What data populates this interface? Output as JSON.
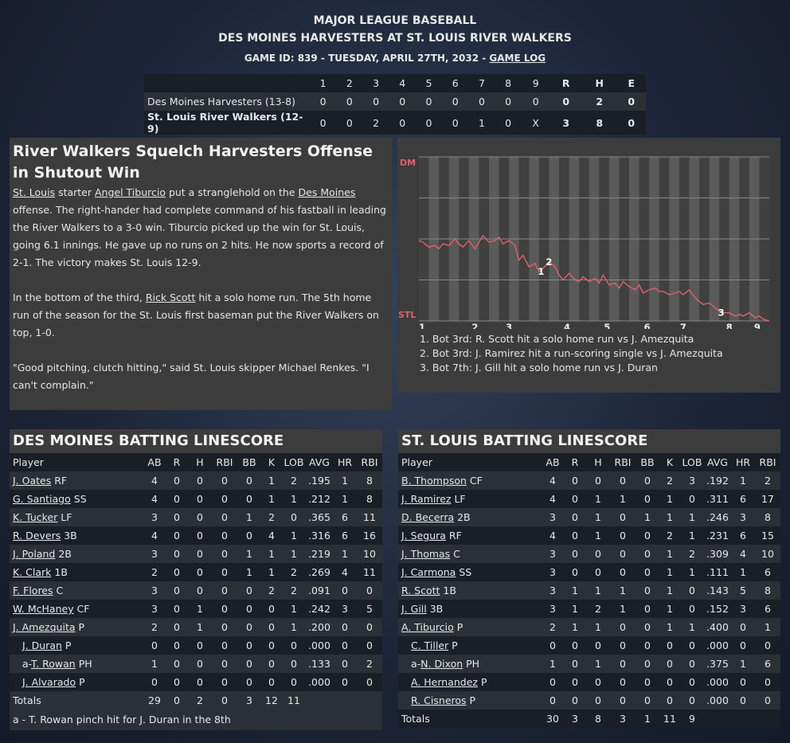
{
  "header": {
    "league": "MAJOR LEAGUE BASEBALL",
    "matchup": "DES MOINES HARVESTERS AT ST. LOUIS RIVER WALKERS",
    "game_info": "GAME ID: 839 - TUESDAY, APRIL 27TH, 2032 - ",
    "game_log_link": "GAME LOG"
  },
  "linescore": {
    "innings": [
      "1",
      "2",
      "3",
      "4",
      "5",
      "6",
      "7",
      "8",
      "9",
      "R",
      "H",
      "E"
    ],
    "away": {
      "team": "Des Moines Harvesters (13-8)",
      "cells": [
        "0",
        "0",
        "0",
        "0",
        "0",
        "0",
        "0",
        "0",
        "0",
        "0",
        "2",
        "0"
      ]
    },
    "home": {
      "team": "St. Louis River Walkers (12-9)",
      "cells": [
        "0",
        "0",
        "2",
        "0",
        "0",
        "0",
        "1",
        "0",
        "X",
        "3",
        "8",
        "0"
      ]
    }
  },
  "story": {
    "title": "River Walkers Squelch Harvesters Offense in Shutout Win",
    "p1": {
      "link1": "St. Louis",
      "t1": " starter ",
      "link2": "Angel Tiburcio",
      "t2": " put a stranglehold on the ",
      "link3": "Des Moines",
      "t3": " offense. The right-hander had complete command of his fastball in leading the River Walkers to a 3-0 win. Tiburcio picked up the win for St. Louis, going 6.1 innings. He gave up no runs on 2 hits. He now sports a record of 2-1. The victory makes St. Louis 12-9."
    },
    "p2": {
      "t1": "In the bottom of the third, ",
      "link1": "Rick Scott",
      "t2": " hit a solo home run. The 5th home run of the season for the St. Louis first baseman put the River Walkers on top, 1-0."
    },
    "p3": "\"Good pitching, clutch hitting,\" said St. Louis skipper Michael Renkes. \"I can't complain.\""
  },
  "chart_data": {
    "type": "line",
    "top_label": "DM",
    "bottom_label": "STL",
    "x_ticks": [
      "1",
      "2",
      "3",
      "4",
      "5",
      "6",
      "7",
      "8",
      "9"
    ],
    "ylim": [
      0,
      1
    ],
    "line_color": "#e06070",
    "markers": [
      {
        "label": "1",
        "x": 3.55
      },
      {
        "label": "2",
        "x": 3.75
      },
      {
        "label": "3",
        "x": 8.05
      }
    ],
    "x": [
      0.5,
      0.6,
      0.75,
      0.9,
      1.0,
      1.1,
      1.25,
      1.4,
      1.5,
      1.6,
      1.75,
      1.9,
      2.0,
      2.1,
      2.25,
      2.4,
      2.5,
      2.6,
      2.75,
      2.9,
      3.0,
      3.1,
      3.25,
      3.4,
      3.5,
      3.6,
      3.75,
      3.9,
      4.0,
      4.1,
      4.25,
      4.4,
      4.5,
      4.6,
      4.75,
      4.9,
      5.0,
      5.1,
      5.25,
      5.4,
      5.5,
      5.6,
      5.75,
      5.9,
      6.0,
      6.1,
      6.25,
      6.4,
      6.5,
      6.6,
      6.75,
      6.9,
      7.0,
      7.1,
      7.25,
      7.4,
      7.5,
      7.6,
      7.75,
      7.9,
      8.0,
      8.1,
      8.25,
      8.4,
      8.5,
      8.6,
      8.75,
      8.9,
      9.0,
      9.1,
      9.25
    ],
    "values": [
      0.49,
      0.48,
      0.45,
      0.46,
      0.44,
      0.47,
      0.46,
      0.5,
      0.47,
      0.45,
      0.49,
      0.44,
      0.48,
      0.52,
      0.48,
      0.49,
      0.51,
      0.47,
      0.49,
      0.46,
      0.37,
      0.4,
      0.33,
      0.35,
      0.3,
      0.32,
      0.36,
      0.33,
      0.28,
      0.25,
      0.29,
      0.25,
      0.24,
      0.27,
      0.24,
      0.26,
      0.23,
      0.28,
      0.22,
      0.23,
      0.2,
      0.24,
      0.21,
      0.19,
      0.22,
      0.17,
      0.19,
      0.2,
      0.18,
      0.18,
      0.16,
      0.17,
      0.18,
      0.16,
      0.19,
      0.14,
      0.12,
      0.1,
      0.11,
      0.08,
      0.06,
      0.05,
      0.05,
      0.03,
      0.04,
      0.03,
      0.05,
      0.02,
      0.03,
      0.01,
      0.0
    ]
  },
  "chart_notes": [
    "1. Bot 3rd: R. Scott hit a solo home run vs J. Amezquita",
    "2. Bot 3rd: J. Ramirez hit a run-scoring single vs J. Amezquita",
    "3. Bot 7th: J. Gill hit a solo home run vs J. Duran"
  ],
  "away_batting": {
    "title": "DES MOINES BATTING LINESCORE",
    "headers": [
      "Player",
      "AB",
      "R",
      "H",
      "RBI",
      "BB",
      "K",
      "LOB",
      "AVG",
      "HR",
      "RBI"
    ],
    "rows": [
      {
        "prefix": "",
        "name": "J. Oates",
        "pos": " RF",
        "stats": [
          "4",
          "0",
          "0",
          "0",
          "0",
          "1",
          "2",
          ".195",
          "1",
          "8"
        ]
      },
      {
        "prefix": "",
        "name": "G. Santiago",
        "pos": " SS",
        "stats": [
          "4",
          "0",
          "0",
          "0",
          "0",
          "1",
          "1",
          ".212",
          "1",
          "8"
        ]
      },
      {
        "prefix": "",
        "name": "K. Tucker",
        "pos": " LF",
        "stats": [
          "3",
          "0",
          "0",
          "0",
          "1",
          "2",
          "0",
          ".365",
          "6",
          "11"
        ]
      },
      {
        "prefix": "",
        "name": "R. Devers",
        "pos": " 3B",
        "stats": [
          "4",
          "0",
          "0",
          "0",
          "0",
          "4",
          "1",
          ".316",
          "6",
          "16"
        ]
      },
      {
        "prefix": "",
        "name": "J. Poland",
        "pos": " 2B",
        "stats": [
          "3",
          "0",
          "0",
          "0",
          "1",
          "1",
          "1",
          ".219",
          "1",
          "10"
        ]
      },
      {
        "prefix": "",
        "name": "K. Clark",
        "pos": " 1B",
        "stats": [
          "2",
          "0",
          "0",
          "0",
          "1",
          "1",
          "2",
          ".269",
          "4",
          "11"
        ]
      },
      {
        "prefix": "",
        "name": "F. Flores",
        "pos": " C",
        "stats": [
          "3",
          "0",
          "0",
          "0",
          "0",
          "2",
          "2",
          ".091",
          "0",
          "0"
        ]
      },
      {
        "prefix": "",
        "name": "W. McHaney",
        "pos": " CF",
        "stats": [
          "3",
          "0",
          "1",
          "0",
          "0",
          "0",
          "1",
          ".242",
          "3",
          "5"
        ]
      },
      {
        "prefix": "",
        "name": "J. Amezquita",
        "pos": " P",
        "stats": [
          "2",
          "0",
          "1",
          "0",
          "0",
          "0",
          "1",
          ".200",
          "0",
          "0"
        ]
      },
      {
        "prefix": "",
        "name": "J. Duran",
        "pos": " P",
        "indent": true,
        "stats": [
          "0",
          "0",
          "0",
          "0",
          "0",
          "0",
          "0",
          ".000",
          "0",
          "0"
        ]
      },
      {
        "prefix": "a-",
        "name": "T. Rowan",
        "pos": " PH",
        "indent": true,
        "stats": [
          "1",
          "0",
          "0",
          "0",
          "0",
          "0",
          "0",
          ".133",
          "0",
          "2"
        ]
      },
      {
        "prefix": "",
        "name": "J. Alvarado",
        "pos": " P",
        "indent": true,
        "stats": [
          "0",
          "0",
          "0",
          "0",
          "0",
          "0",
          "0",
          ".000",
          "0",
          "0"
        ]
      }
    ],
    "totals": {
      "label": "Totals",
      "stats": [
        "29",
        "0",
        "2",
        "0",
        "3",
        "12",
        "11",
        "",
        "",
        ""
      ]
    },
    "footnote": "a - T. Rowan pinch hit for J. Duran in the 8th"
  },
  "home_batting": {
    "title": "ST. LOUIS BATTING LINESCORE",
    "headers": [
      "Player",
      "AB",
      "R",
      "H",
      "RBI",
      "BB",
      "K",
      "LOB",
      "AVG",
      "HR",
      "RBI"
    ],
    "rows": [
      {
        "prefix": "",
        "name": "B. Thompson",
        "pos": " CF",
        "stats": [
          "4",
          "0",
          "0",
          "0",
          "0",
          "2",
          "3",
          ".192",
          "1",
          "2"
        ]
      },
      {
        "prefix": "",
        "name": "J. Ramirez",
        "pos": " LF",
        "stats": [
          "4",
          "0",
          "1",
          "1",
          "0",
          "1",
          "0",
          ".311",
          "6",
          "17"
        ]
      },
      {
        "prefix": "",
        "name": "D. Becerra",
        "pos": " 2B",
        "stats": [
          "3",
          "0",
          "1",
          "0",
          "1",
          "1",
          "1",
          ".246",
          "3",
          "8"
        ]
      },
      {
        "prefix": "",
        "name": "J. Segura",
        "pos": " RF",
        "stats": [
          "4",
          "0",
          "1",
          "0",
          "0",
          "2",
          "1",
          ".231",
          "6",
          "15"
        ]
      },
      {
        "prefix": "",
        "name": "J. Thomas",
        "pos": " C",
        "stats": [
          "3",
          "0",
          "0",
          "0",
          "0",
          "1",
          "2",
          ".309",
          "4",
          "10"
        ]
      },
      {
        "prefix": "",
        "name": "J. Carmona",
        "pos": " SS",
        "stats": [
          "3",
          "0",
          "0",
          "0",
          "0",
          "1",
          "1",
          ".111",
          "1",
          "6"
        ]
      },
      {
        "prefix": "",
        "name": "R. Scott",
        "pos": " 1B",
        "stats": [
          "3",
          "1",
          "1",
          "1",
          "0",
          "1",
          "0",
          ".143",
          "5",
          "8"
        ]
      },
      {
        "prefix": "",
        "name": "J. Gill",
        "pos": " 3B",
        "stats": [
          "3",
          "1",
          "2",
          "1",
          "0",
          "1",
          "0",
          ".152",
          "3",
          "6"
        ]
      },
      {
        "prefix": "",
        "name": "A. Tiburcio",
        "pos": " P",
        "stats": [
          "2",
          "1",
          "1",
          "0",
          "0",
          "1",
          "1",
          ".400",
          "0",
          "1"
        ]
      },
      {
        "prefix": "",
        "name": "C. Tiller",
        "pos": " P",
        "indent": true,
        "stats": [
          "0",
          "0",
          "0",
          "0",
          "0",
          "0",
          "0",
          ".000",
          "0",
          "0"
        ]
      },
      {
        "prefix": "a-",
        "name": "N. Dixon",
        "pos": " PH",
        "indent": true,
        "stats": [
          "1",
          "0",
          "1",
          "0",
          "0",
          "0",
          "0",
          ".375",
          "1",
          "6"
        ]
      },
      {
        "prefix": "",
        "name": "A. Hernandez",
        "pos": " P",
        "indent": true,
        "stats": [
          "0",
          "0",
          "0",
          "0",
          "0",
          "0",
          "0",
          ".000",
          "0",
          "0"
        ]
      },
      {
        "prefix": "",
        "name": "R. Cisneros",
        "pos": " P",
        "indent": true,
        "stats": [
          "0",
          "0",
          "0",
          "0",
          "0",
          "0",
          "0",
          ".000",
          "0",
          "0"
        ]
      }
    ],
    "totals": {
      "label": "Totals",
      "stats": [
        "30",
        "3",
        "8",
        "3",
        "1",
        "11",
        "9",
        "",
        "",
        ""
      ]
    }
  }
}
